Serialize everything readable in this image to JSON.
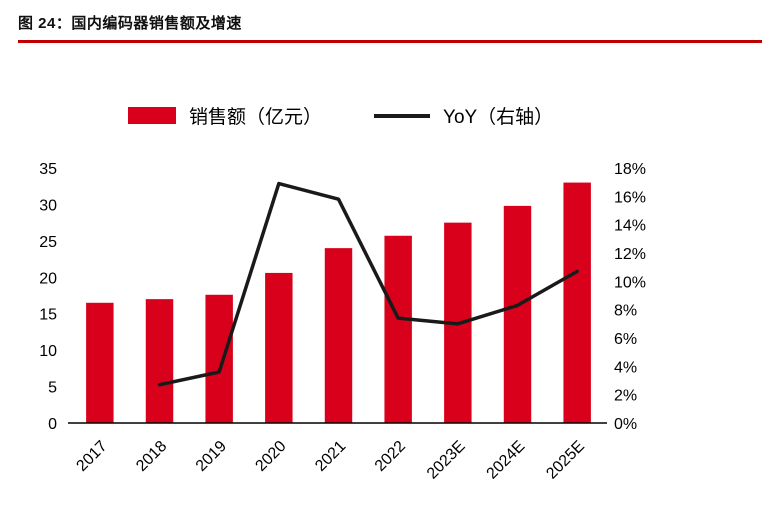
{
  "figure": {
    "title": "图 24：国内编码器销售额及增速"
  },
  "legend": {
    "bar_label": "销售额（亿元）",
    "line_label": "YoY（右轴）"
  },
  "colors": {
    "bar": "#d9001b",
    "line": "#1a1a1a",
    "title_rule": "#c00000",
    "text": "#000000"
  },
  "chart_data": {
    "type": "bar+line",
    "title": "国内编码器销售额及增速",
    "categories": [
      "2017",
      "2018",
      "2019",
      "2020",
      "2021",
      "2022",
      "2023E",
      "2024E",
      "2025E"
    ],
    "series": [
      {
        "name": "销售额（亿元）",
        "type": "bar",
        "axis": "left",
        "values": [
          16.5,
          17.0,
          17.6,
          20.6,
          24.0,
          25.7,
          27.5,
          29.8,
          33.0
        ]
      },
      {
        "name": "YoY（右轴）",
        "type": "line",
        "axis": "right",
        "values": [
          null,
          2.7,
          3.6,
          16.9,
          15.8,
          7.4,
          7.0,
          8.3,
          10.7
        ]
      }
    ],
    "left_axis": {
      "min": 0,
      "max": 35,
      "step": 5,
      "labels": [
        "0",
        "5",
        "10",
        "15",
        "20",
        "25",
        "30",
        "35"
      ]
    },
    "right_axis": {
      "min": 0,
      "max": 18,
      "step": 2,
      "labels": [
        "0%",
        "2%",
        "4%",
        "6%",
        "8%",
        "10%",
        "12%",
        "14%",
        "16%",
        "18%"
      ]
    },
    "grid": false,
    "legend_position": "top"
  }
}
